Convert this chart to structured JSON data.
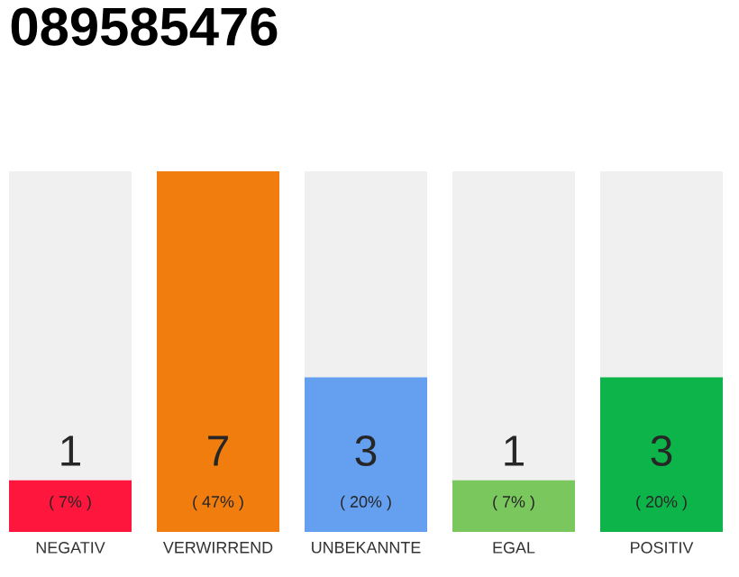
{
  "chart_data": {
    "type": "bar",
    "title": "089585476",
    "categories": [
      "NEGATIV",
      "VERWIRREND",
      "UNBEKANNTE",
      "EGAL",
      "POSITIV"
    ],
    "values": [
      1,
      7,
      3,
      1,
      3
    ],
    "colors": [
      "#ff163c",
      "#f07d0d",
      "#659ff0",
      "#7ac85d",
      "#0db449"
    ],
    "data_labels": true,
    "annotations": [
      "( 7% )",
      "( 47% )",
      "( 20% )",
      "( 7% )",
      "( 20% )"
    ]
  }
}
